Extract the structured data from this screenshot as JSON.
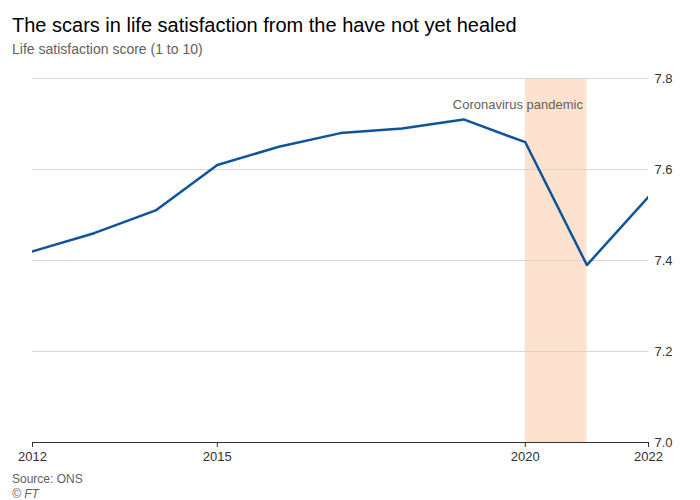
{
  "chart_data": {
    "type": "line",
    "title": "The scars in life satisfaction from the have not yet healed",
    "subtitle": "Life satisfaction score (1 to 10)",
    "source": "Source: ONS",
    "credit": "© FT",
    "x": [
      2012,
      2013,
      2014,
      2015,
      2016,
      2017,
      2018,
      2019,
      2020,
      2021,
      2022
    ],
    "series": [
      {
        "name": "Life satisfaction score",
        "color": "#0f5499",
        "values": [
          7.42,
          7.46,
          7.51,
          7.61,
          7.65,
          7.68,
          7.69,
          7.71,
          7.66,
          7.39,
          7.54
        ]
      }
    ],
    "xlim": [
      2012,
      2022
    ],
    "xticks": [
      2012,
      2015,
      2020,
      2022
    ],
    "ylim": [
      7.0,
      7.8
    ],
    "yticks": [
      {
        "value": 7.0,
        "label": "7.0"
      },
      7.2,
      7.4,
      7.6,
      7.8
    ],
    "grid": true,
    "annotations": [
      {
        "text": "Coronavirus pandemic",
        "x_start": 2020,
        "x_end": 2021,
        "color": "#fde2cf"
      }
    ]
  }
}
